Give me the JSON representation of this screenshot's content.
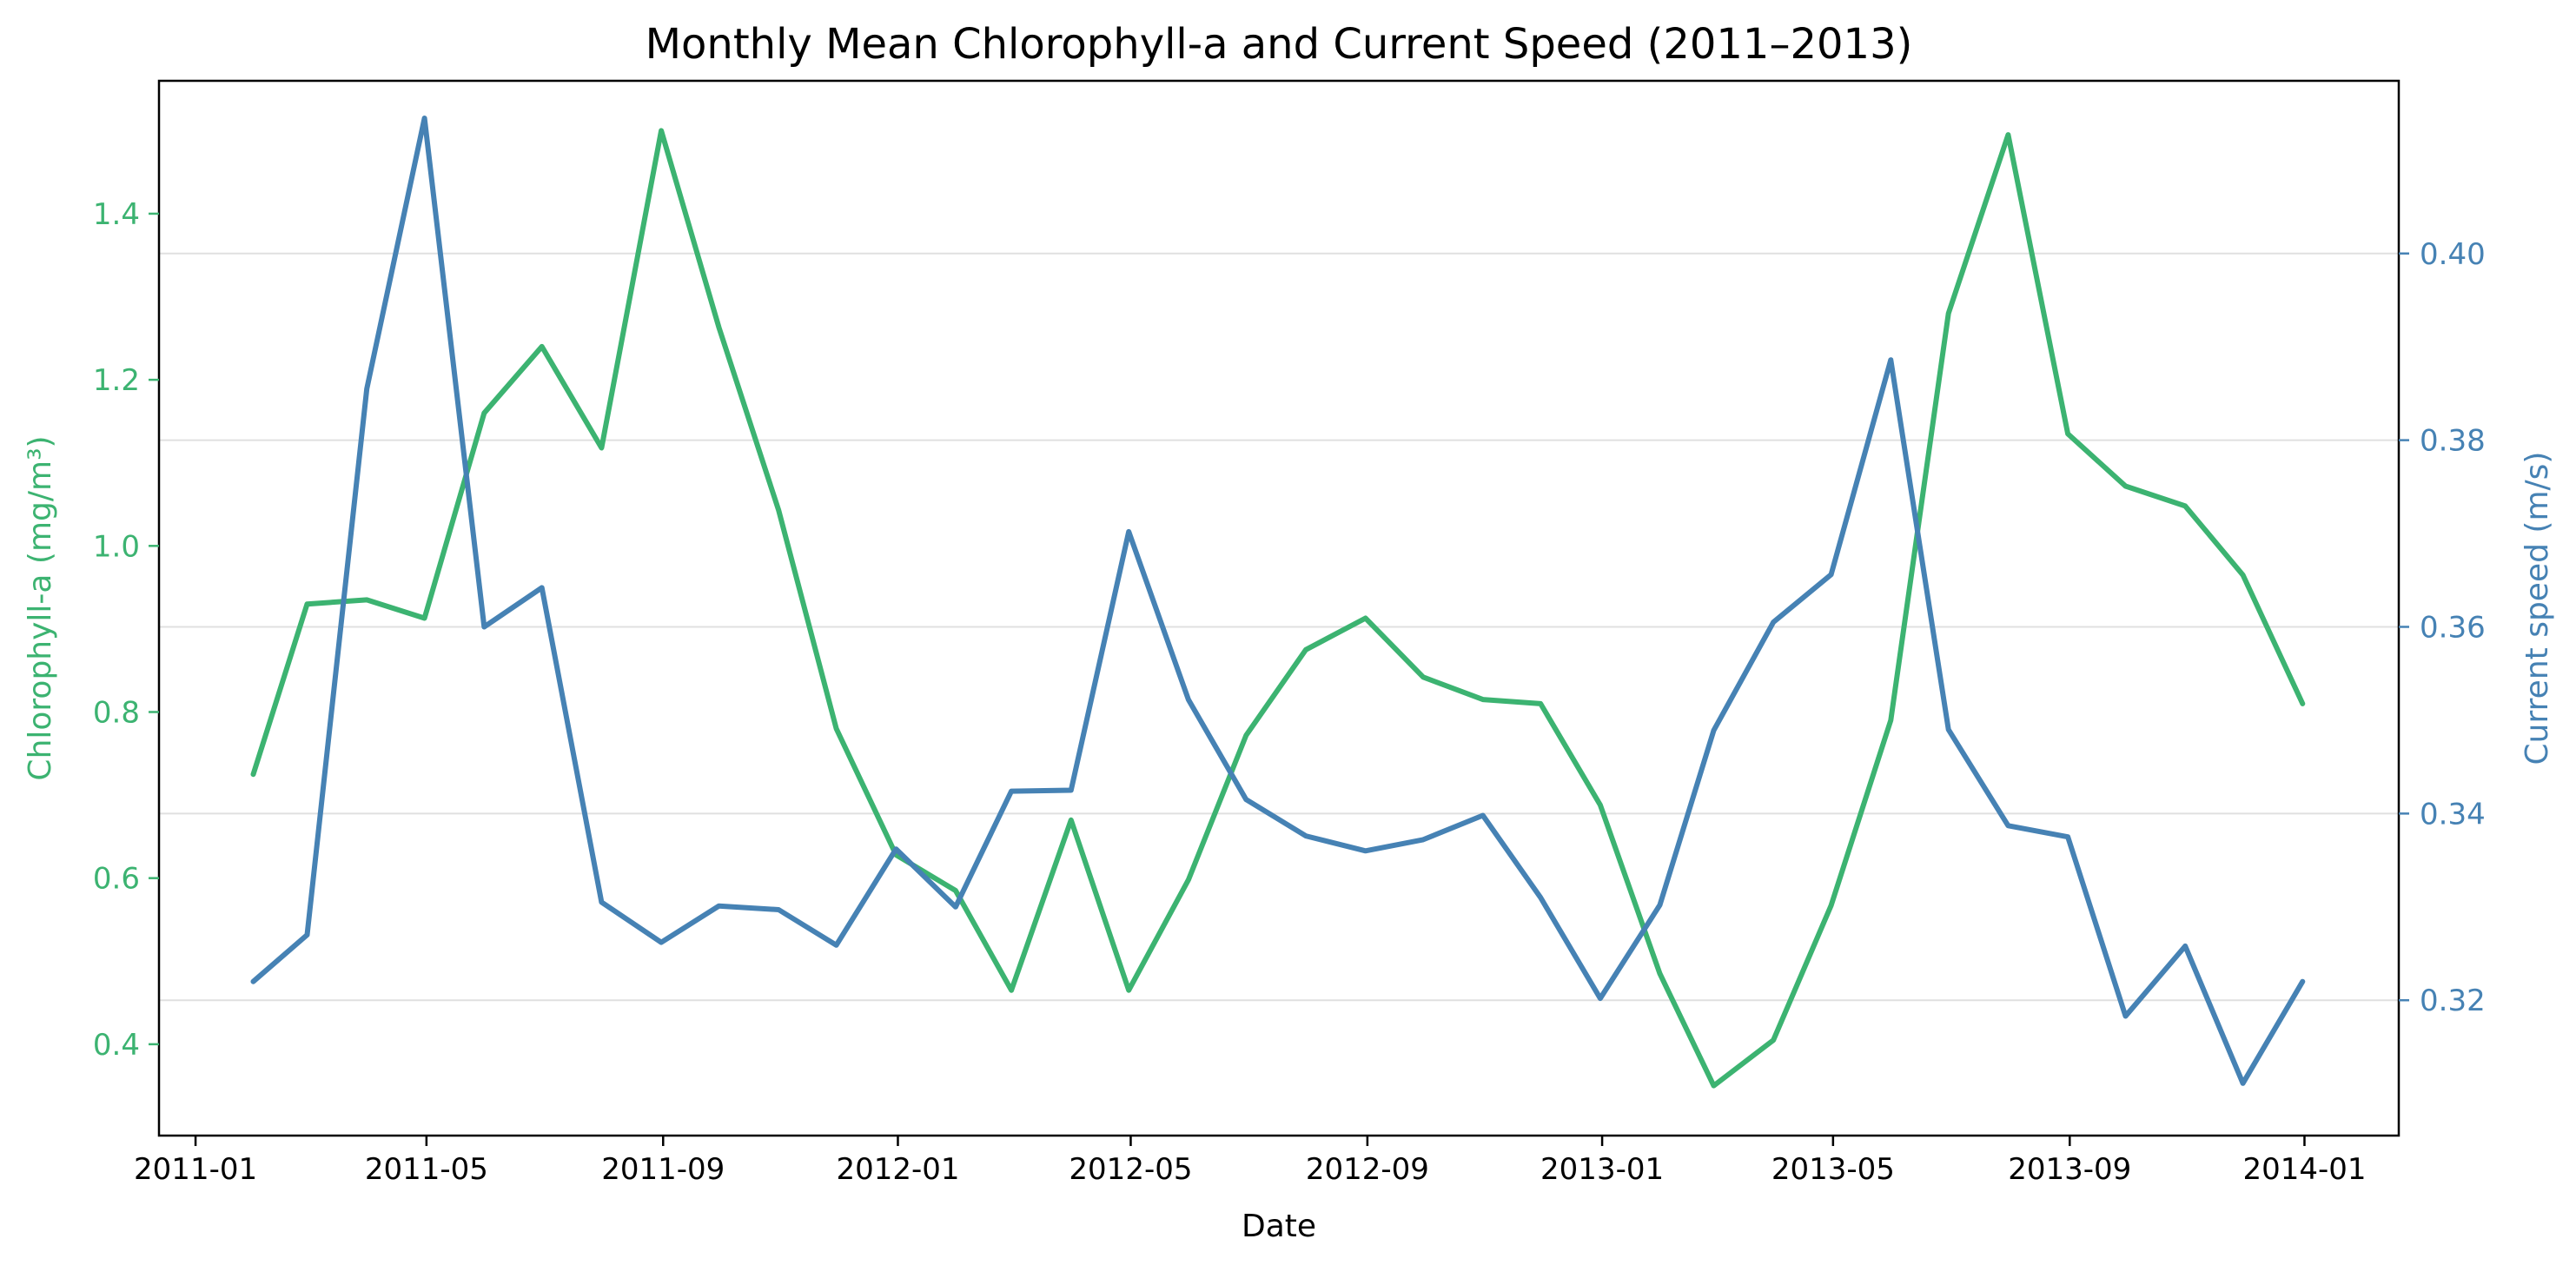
{
  "chart_data": {
    "type": "line",
    "title": "Monthly Mean Chlorophyll-a and Current Speed (2011–2013)",
    "xlabel": "Date",
    "ylabel_left": "Chlorophyll-a (mg/m³)",
    "ylabel_right": "Current speed (m/s)",
    "x_tick_labels": [
      "2011-01",
      "2011-05",
      "2011-09",
      "2012-01",
      "2012-05",
      "2012-09",
      "2013-01",
      "2013-05",
      "2013-09",
      "2014-01"
    ],
    "y_left_ticks": [
      "0.4",
      "0.6",
      "0.8",
      "1.0",
      "1.2",
      "1.4"
    ],
    "y_right_ticks": [
      "0.32",
      "0.34",
      "0.36",
      "0.38",
      "0.40"
    ],
    "ylim_left": [
      0.29,
      1.56
    ],
    "ylim_right": [
      0.3055,
      0.4185
    ],
    "grid": "horizontal, right axis",
    "x": [
      "2011-01-31",
      "2011-02-28",
      "2011-03-31",
      "2011-04-30",
      "2011-05-31",
      "2011-06-30",
      "2011-07-31",
      "2011-08-31",
      "2011-09-30",
      "2011-10-31",
      "2011-11-30",
      "2011-12-31",
      "2012-01-31",
      "2012-02-29",
      "2012-03-31",
      "2012-04-30",
      "2012-05-31",
      "2012-06-30",
      "2012-07-31",
      "2012-08-31",
      "2012-09-30",
      "2012-10-31",
      "2012-11-30",
      "2012-12-31",
      "2013-01-31",
      "2013-02-28",
      "2013-03-31",
      "2013-04-30",
      "2013-05-31",
      "2013-06-30",
      "2013-07-31",
      "2013-08-31",
      "2013-09-30",
      "2013-10-31",
      "2013-11-30",
      "2013-12-31"
    ],
    "series": [
      {
        "axis": "left",
        "color": "#3cb371",
        "values": [
          0.725,
          0.93,
          0.935,
          0.913,
          1.16,
          1.24,
          1.118,
          1.5,
          1.263,
          1.043,
          0.78,
          0.628,
          0.585,
          0.465,
          0.67,
          0.465,
          0.598,
          0.772,
          0.875,
          0.913,
          0.842,
          0.815,
          0.81,
          0.688,
          0.485,
          0.35,
          0.405,
          0.567,
          0.79,
          1.28,
          1.495,
          1.135,
          1.072,
          1.048,
          0.965,
          0.81
        ]
      },
      {
        "axis": "right",
        "color": "#4682b4",
        "values": [
          0.322,
          0.327,
          0.3855,
          0.4145,
          0.36,
          0.3642,
          0.3305,
          0.3262,
          0.3301,
          0.3297,
          0.3259,
          0.3362,
          0.33,
          0.3424,
          0.3425,
          0.3702,
          0.3522,
          0.3415,
          0.3376,
          0.336,
          0.3372,
          0.3398,
          0.331,
          0.3202,
          0.3302,
          0.3489,
          0.3605,
          0.3656,
          0.3886,
          0.349,
          0.3387,
          0.3375,
          0.3183,
          0.3258,
          0.3111,
          0.322
        ]
      }
    ],
    "colors": {
      "left_axis": "#3cb371",
      "right_axis": "#4682b4",
      "text": "#000000",
      "grid": "#e0e0e0"
    }
  }
}
